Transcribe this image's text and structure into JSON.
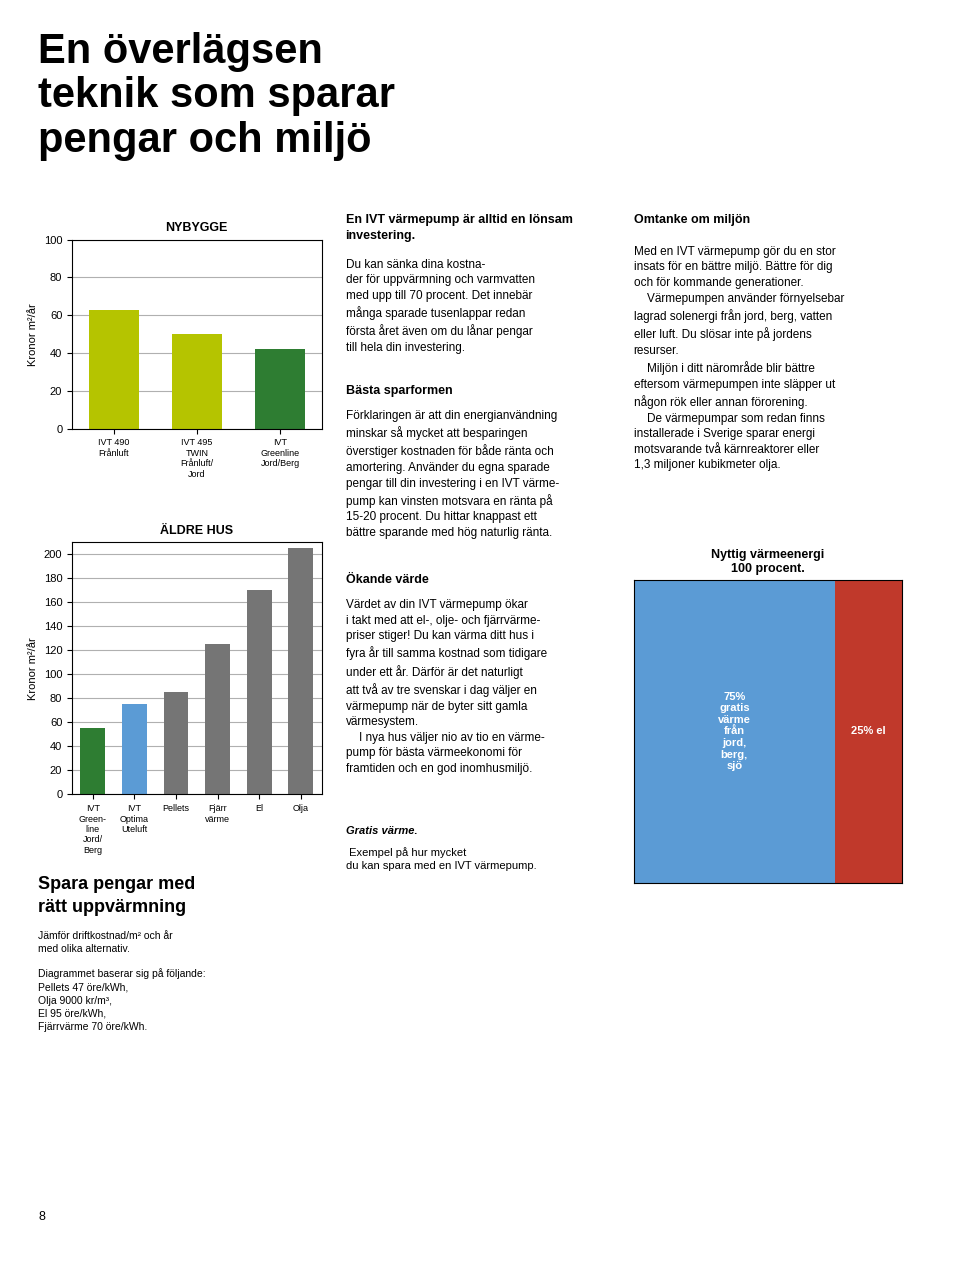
{
  "title": "En överlägsen\nteknik som sparar\npengar och miljö",
  "annotations": [
    {
      "text": "Spara pengar med\nrätt uppvärmning"
    },
    {
      "text": "Jämför driftkostnad/m² och år\nmed olika alternativ."
    },
    {
      "text": "Diagrammet baserar sig på följande:\nPellets 47 öre/kWh,\nOlja 9000 kr/m³,\nEl 95 öre/kWh,\nFjärrvärme 70 öre/kWh."
    },
    {
      "text": "8"
    },
    {
      "text": "En IVT värmepump är alltid en lönsam\ninvestering."
    },
    {
      "text": "Du kan sänka dina kostna-\nder för uppvärmning och varmvatten\nmed upp till 70 procent. Det innebär\nmånga sparade tusenlappar redan\nförsta året även om du lånar pengar\ntill hela din investering."
    },
    {
      "text": "Bästa sparformen"
    },
    {
      "text": "Förklaringen är att din energianvändning\nminskar så mycket att besparingen\növerstiger kostnaden för både ränta och\namortering. Använder du egna sparade\npengar till din investering i en IVT värme-\npump kan vinsten motsvara en ränta på\n15-20 procent. Du hittar knappast ett\nbättre sparande med hög naturlig ränta."
    },
    {
      "text": "Ökande värde"
    },
    {
      "text": "Värdet av din IVT värmepump ökar\ni takt med att el-, olje- och fjärrvärme-\npriser stiger! Du kan värma ditt hus i\nfyra år till samma kostnad som tidigare\nunder ett år. Därför är det naturligt\natt två av tre svenskar i dag väljer en\nvärmepump när de byter sitt gamla\nvärmesystem.\n    I nya hus väljer nio av tio en värme-\npump för bästa värmeekonomi för\nframtiden och en god inomhusmiljö."
    },
    {
      "text": "Gratis värme."
    },
    {
      "text": " Exempel på hur mycket\ndu kan spara med en IVT värmepump."
    },
    {
      "text": "Omtanke om miljön"
    },
    {
      "text": "Med en IVT värmepump gör du en stor\ninsats för en bättre miljö. Bättre för dig\noch för kommande generationer.\n    Värmepumpen använder förnyelsebar\nlagrad solenergi från jord, berg, vatten\neller luft. Du slösar inte på jordens\nresurser.\n    Miljön i ditt närområde blir bättre\neftersom värmepumpen inte släpper ut\nnågon rök eller annan förorening.\n    De värmepumpar som redan finns\ninstallerade i Sverige sparar energi\nmotsvarande två kärnreaktorer eller\n1,3 miljoner kubikmeter olja."
    }
  ],
  "chart_data": [
    {
      "type": "bar",
      "title": "NYBYGGE",
      "ylabel": "Kronor m²/år",
      "categories": [
        "IVT 490\nFrånluft",
        "IVT 495\nTWIN\nFrånluft/\nJord",
        "IVT\nGreenline\nJord/Berg"
      ],
      "values": [
        63,
        50,
        42
      ],
      "colors": [
        "#b5c400",
        "#b5c400",
        "#2e7d32"
      ],
      "ylim": [
        0,
        100
      ],
      "yticks": [
        0,
        20,
        40,
        60,
        80,
        100
      ],
      "grid": true
    },
    {
      "type": "bar",
      "title": "ÄLDRE HUS",
      "ylabel": "Kronor m²/år",
      "categories": [
        "IVT\nGreen-\nline\nJord/\nBerg",
        "IVT\nOptima\nUteluft",
        "Pellets",
        "Fjärr\nvärme",
        "El",
        "Olja"
      ],
      "values": [
        55,
        75,
        85,
        125,
        170,
        205
      ],
      "colors": [
        "#2e7d32",
        "#5b9bd5",
        "#757575",
        "#757575",
        "#757575",
        "#757575"
      ],
      "ylim": [
        0,
        210
      ],
      "yticks": [
        0,
        20,
        40,
        60,
        80,
        100,
        120,
        140,
        160,
        180,
        200
      ],
      "grid": true
    },
    {
      "type": "bar",
      "title": "Nyttig värmeenergi\n100 procent.",
      "orientation": "horizontal",
      "stacked": true,
      "data_labels": true,
      "tick_labels": false,
      "categories": [
        null
      ],
      "series": [
        {
          "values": [
            75
          ],
          "color": "#5b9bd5",
          "value_labels": [
            "75%\ngratis\nvärme\nfrån\njord,\nberg,\nsjö"
          ]
        },
        {
          "values": [
            25
          ],
          "color": "#c0392b",
          "value_labels": [
            "25% el"
          ]
        }
      ],
      "xlim": [
        0,
        100
      ]
    }
  ]
}
